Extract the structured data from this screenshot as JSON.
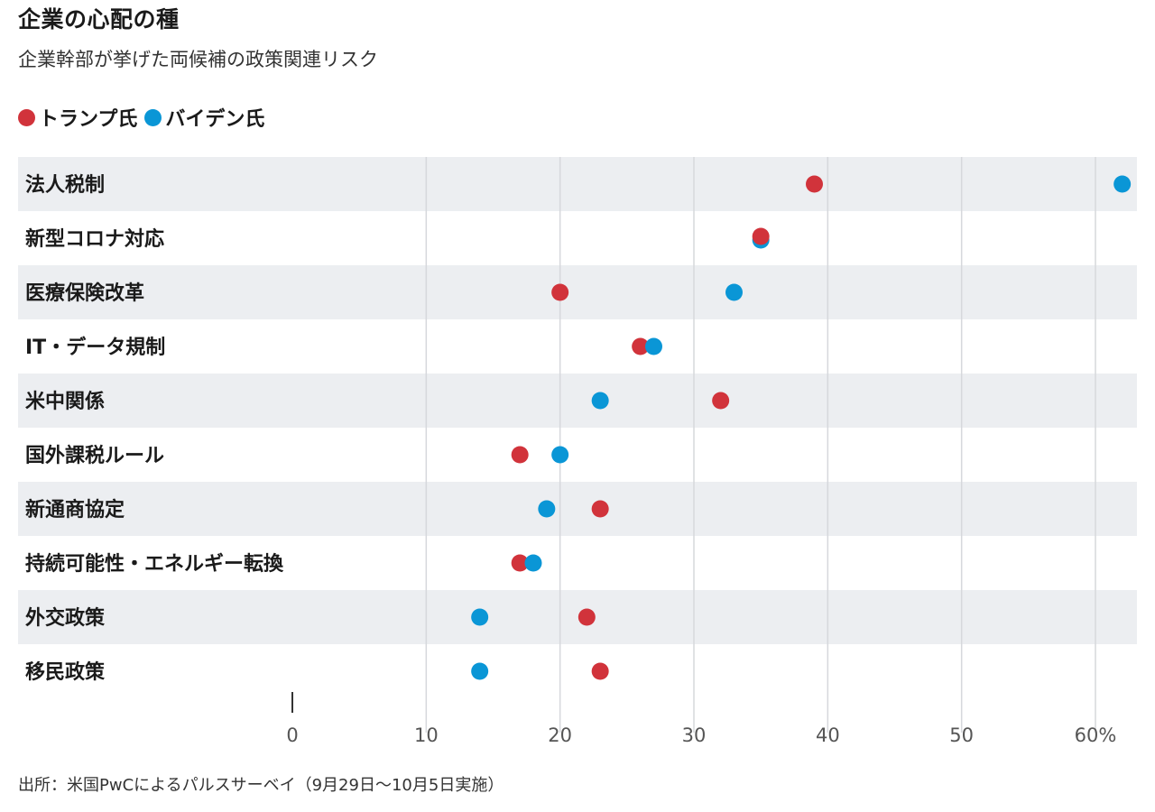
{
  "header": {
    "title": "企業の心配の種",
    "subtitle": "企業幹部が挙げた両候補の政策関連リスク"
  },
  "legend": [
    {
      "name": "トランプ氏",
      "color": "#d1333b"
    },
    {
      "name": "バイデン氏",
      "color": "#0a96d6"
    }
  ],
  "footer": {
    "source": "出所：米国PwCによるパルスサーベイ（9月29日〜10月5日実施）"
  },
  "chart_data": {
    "type": "scatter",
    "orientation": "horizontal-dot-plot",
    "categories": [
      "法人税制",
      "新型コロナ対応",
      "医療保険改革",
      "IT・データ規制",
      "米中関係",
      "国外課税ルール",
      "新通商協定",
      "持続可能性・エネルギー転換",
      "外交政策",
      "移民政策"
    ],
    "series": [
      {
        "name": "トランプ氏",
        "color": "#d1333b",
        "values": [
          39,
          35,
          20,
          26,
          32,
          17,
          23,
          17,
          22,
          23
        ]
      },
      {
        "name": "バイデン氏",
        "color": "#0a96d6",
        "values": [
          62,
          35,
          33,
          27,
          23,
          20,
          19,
          18,
          14,
          14
        ]
      }
    ],
    "x_ticks": [
      "0",
      "10",
      "20",
      "30",
      "40",
      "50",
      "60%"
    ],
    "xlim": [
      0,
      60
    ],
    "grid": true,
    "row_banding": true,
    "legend_position": "top-left"
  }
}
